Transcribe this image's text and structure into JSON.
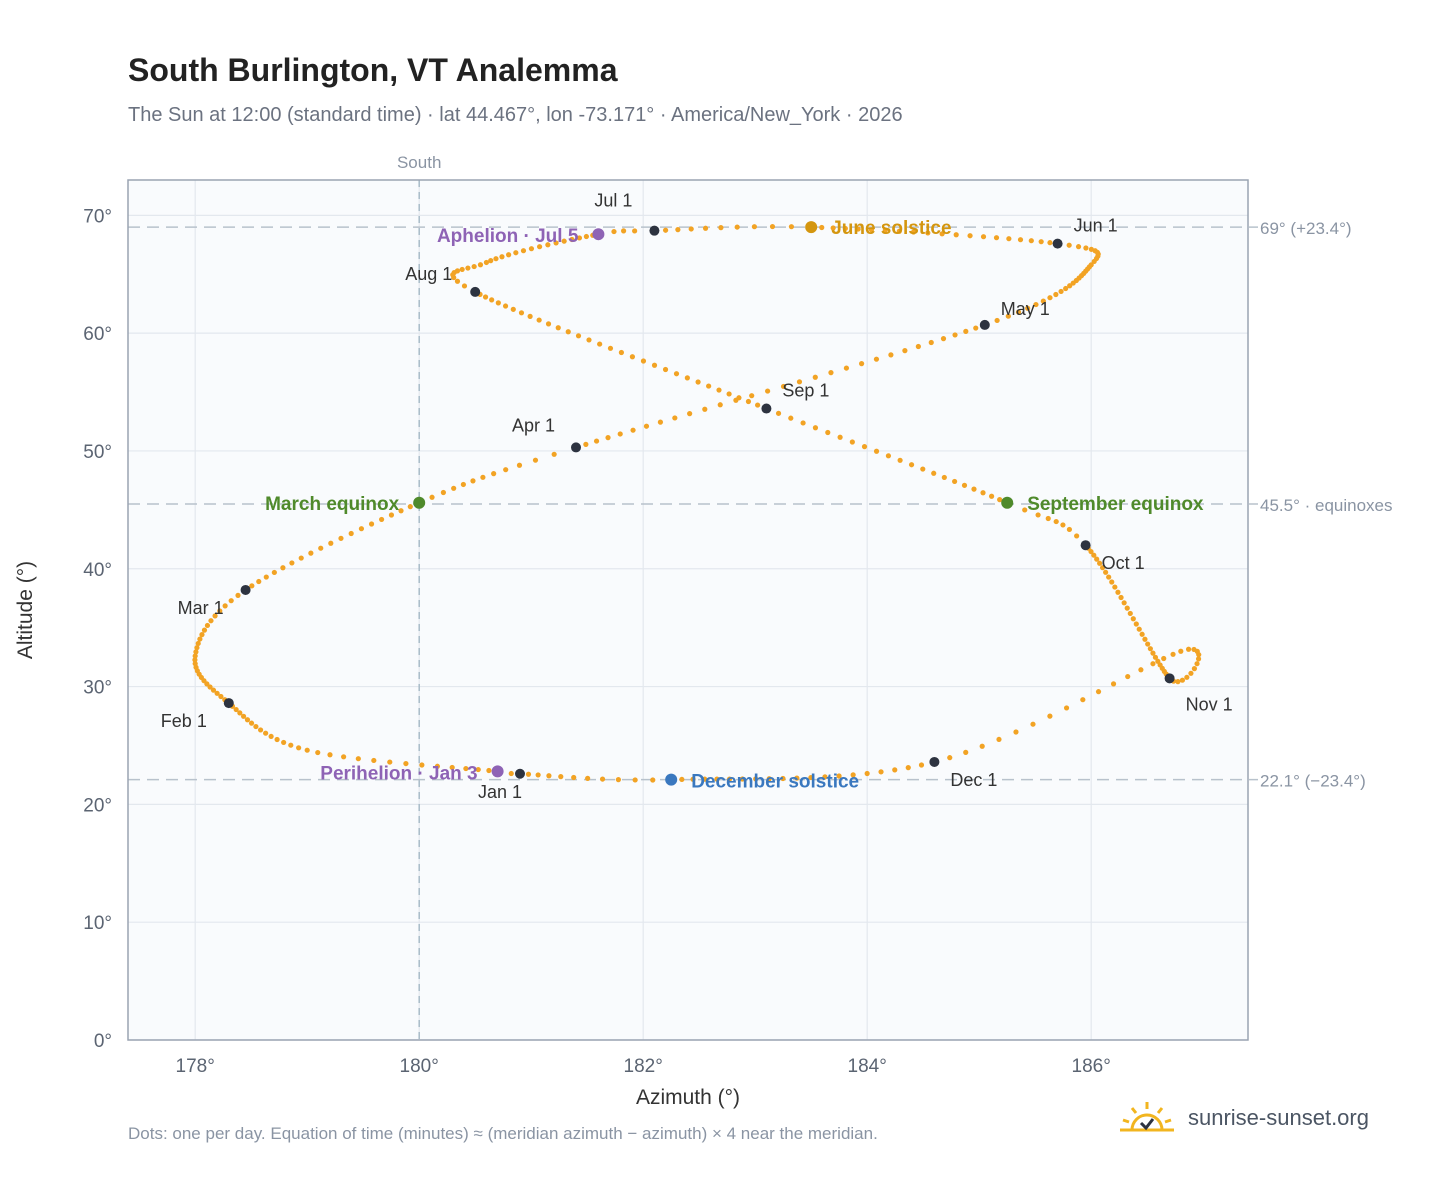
{
  "header": {
    "title": "South Burlington, VT Analemma",
    "subtitle": "The Sun at 12:00 (standard time) · lat 44.467°, lon -73.171° · America/New_York · 2026"
  },
  "footer": {
    "note": "Dots: one per day. Equation of time (minutes) ≈ (meridian azimuth − azimuth) × 4 near the meridian.",
    "brand": "sunrise-sunset.org",
    "brand_icon": "sun-check-icon"
  },
  "colors": {
    "path": "#f2a324",
    "month_dot": "#2d3340",
    "solstice_june": "#d4960f",
    "equinox": "#4f8a2b",
    "solstice_december": "#3a78bf",
    "apsis": "#8e63b5",
    "reference_line": "#b8c2cc",
    "axis_text": "#5b6472"
  },
  "chart_data": {
    "type": "scatter",
    "xlabel": "Azimuth (°)",
    "ylabel": "Altitude (°)",
    "xlim": [
      177.4,
      187.4
    ],
    "ylim": [
      0,
      73
    ],
    "xticks": [
      178,
      180,
      182,
      184,
      186
    ],
    "xtick_labels": [
      "178°",
      "180°",
      "182°",
      "184°",
      "186°"
    ],
    "yticks": [
      0,
      10,
      20,
      30,
      40,
      50,
      60,
      70
    ],
    "ytick_labels": [
      "0°",
      "10°",
      "20°",
      "30°",
      "40°",
      "50°",
      "60°",
      "70°"
    ],
    "grid": true,
    "meridian": {
      "x": 180,
      "label": "South"
    },
    "reference_lines": [
      {
        "y": 69.0,
        "label": "69° (+23.4°)"
      },
      {
        "y": 45.5,
        "label": "45.5° · equinoxes"
      },
      {
        "y": 22.1,
        "label": "22.1° (−23.4°)"
      }
    ],
    "month_markers": [
      {
        "label": "Jan 1",
        "x": 180.9,
        "y": 22.6
      },
      {
        "label": "Feb 1",
        "x": 178.3,
        "y": 28.6
      },
      {
        "label": "Mar 1",
        "x": 178.45,
        "y": 38.2
      },
      {
        "label": "Apr 1",
        "x": 181.4,
        "y": 50.3
      },
      {
        "label": "May 1",
        "x": 185.05,
        "y": 60.7
      },
      {
        "label": "Jun 1",
        "x": 185.7,
        "y": 67.6
      },
      {
        "label": "Jul 1",
        "x": 182.1,
        "y": 68.7
      },
      {
        "label": "Aug 1",
        "x": 180.5,
        "y": 63.5
      },
      {
        "label": "Sep 1",
        "x": 183.1,
        "y": 53.6
      },
      {
        "label": "Oct 1",
        "x": 185.95,
        "y": 42.0
      },
      {
        "label": "Nov 1",
        "x": 186.7,
        "y": 30.7
      },
      {
        "label": "Dec 1",
        "x": 184.6,
        "y": 23.6
      }
    ],
    "events": [
      {
        "label": "June solstice",
        "x": 183.5,
        "y": 69.0,
        "kind": "solstice_june"
      },
      {
        "label": "March equinox",
        "x": 180.0,
        "y": 45.6,
        "kind": "equinox"
      },
      {
        "label": "September equinox",
        "x": 185.25,
        "y": 45.6,
        "kind": "equinox"
      },
      {
        "label": "December solstice",
        "x": 182.25,
        "y": 22.1,
        "kind": "solstice_december"
      },
      {
        "label": "Aphelion · Jul 5",
        "x": 181.6,
        "y": 68.4,
        "kind": "apsis"
      },
      {
        "label": "Perihelion · Jan 3",
        "x": 180.7,
        "y": 22.8,
        "kind": "apsis"
      }
    ]
  }
}
